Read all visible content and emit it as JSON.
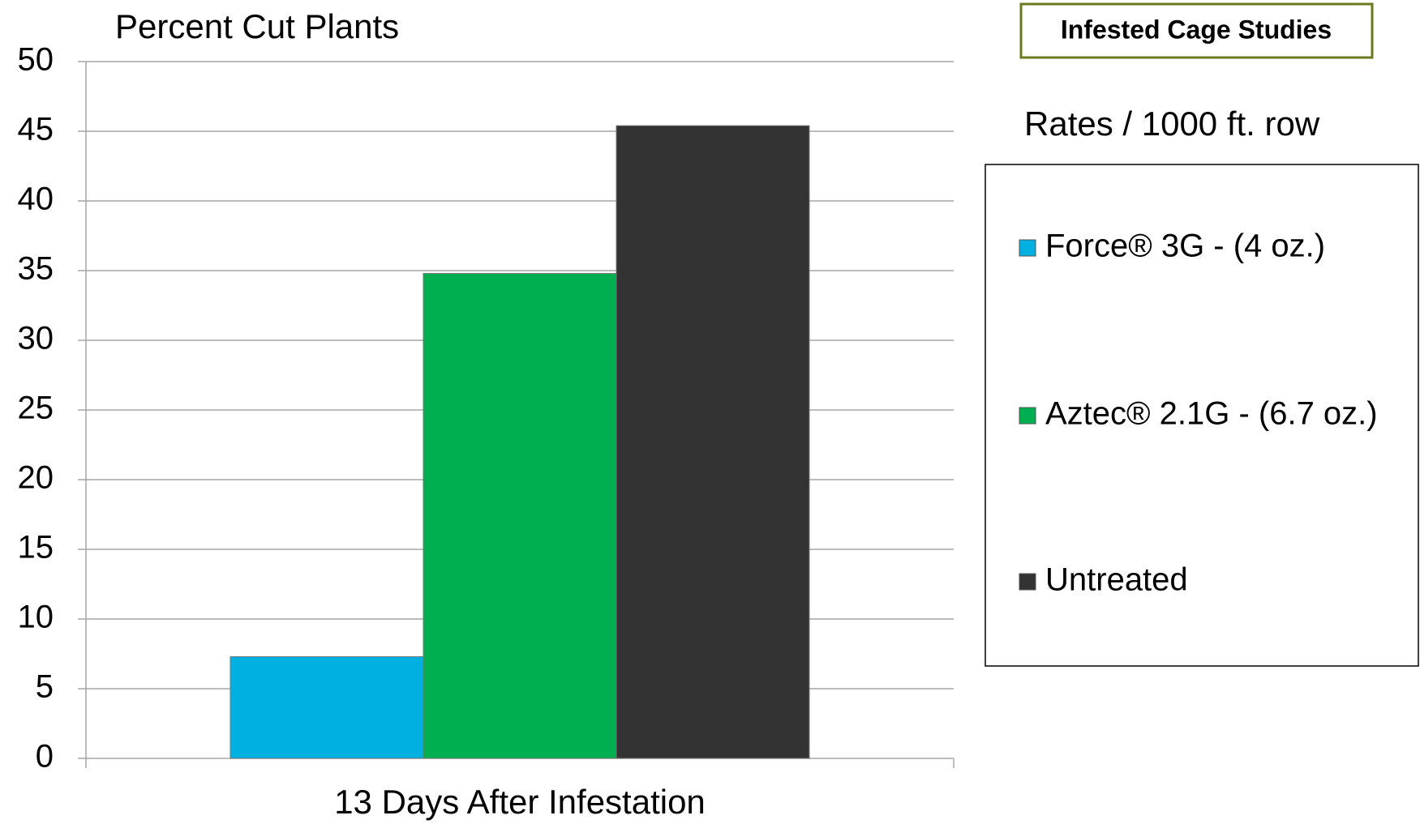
{
  "chart_data": {
    "type": "bar",
    "title": "Percent Cut Plants",
    "panel_title": "Infested Cage Studies",
    "legend_title": "Rates / 1000 ft. row",
    "categories": [
      "13 Days After Infestation"
    ],
    "series": [
      {
        "name": "Force® 3G - (4 oz.)",
        "color": "#00b0e0",
        "values": [
          7.3
        ]
      },
      {
        "name": "Aztec® 2.1G - (6.7 oz.)",
        "color": "#00b050",
        "values": [
          34.8
        ]
      },
      {
        "name": "Untreated",
        "color": "#333333",
        "values": [
          45.4
        ]
      }
    ],
    "ylim": [
      0,
      50
    ],
    "yticks": [
      0,
      5,
      10,
      15,
      20,
      25,
      30,
      35,
      40,
      45,
      50
    ],
    "grid": true,
    "legend": "right"
  }
}
